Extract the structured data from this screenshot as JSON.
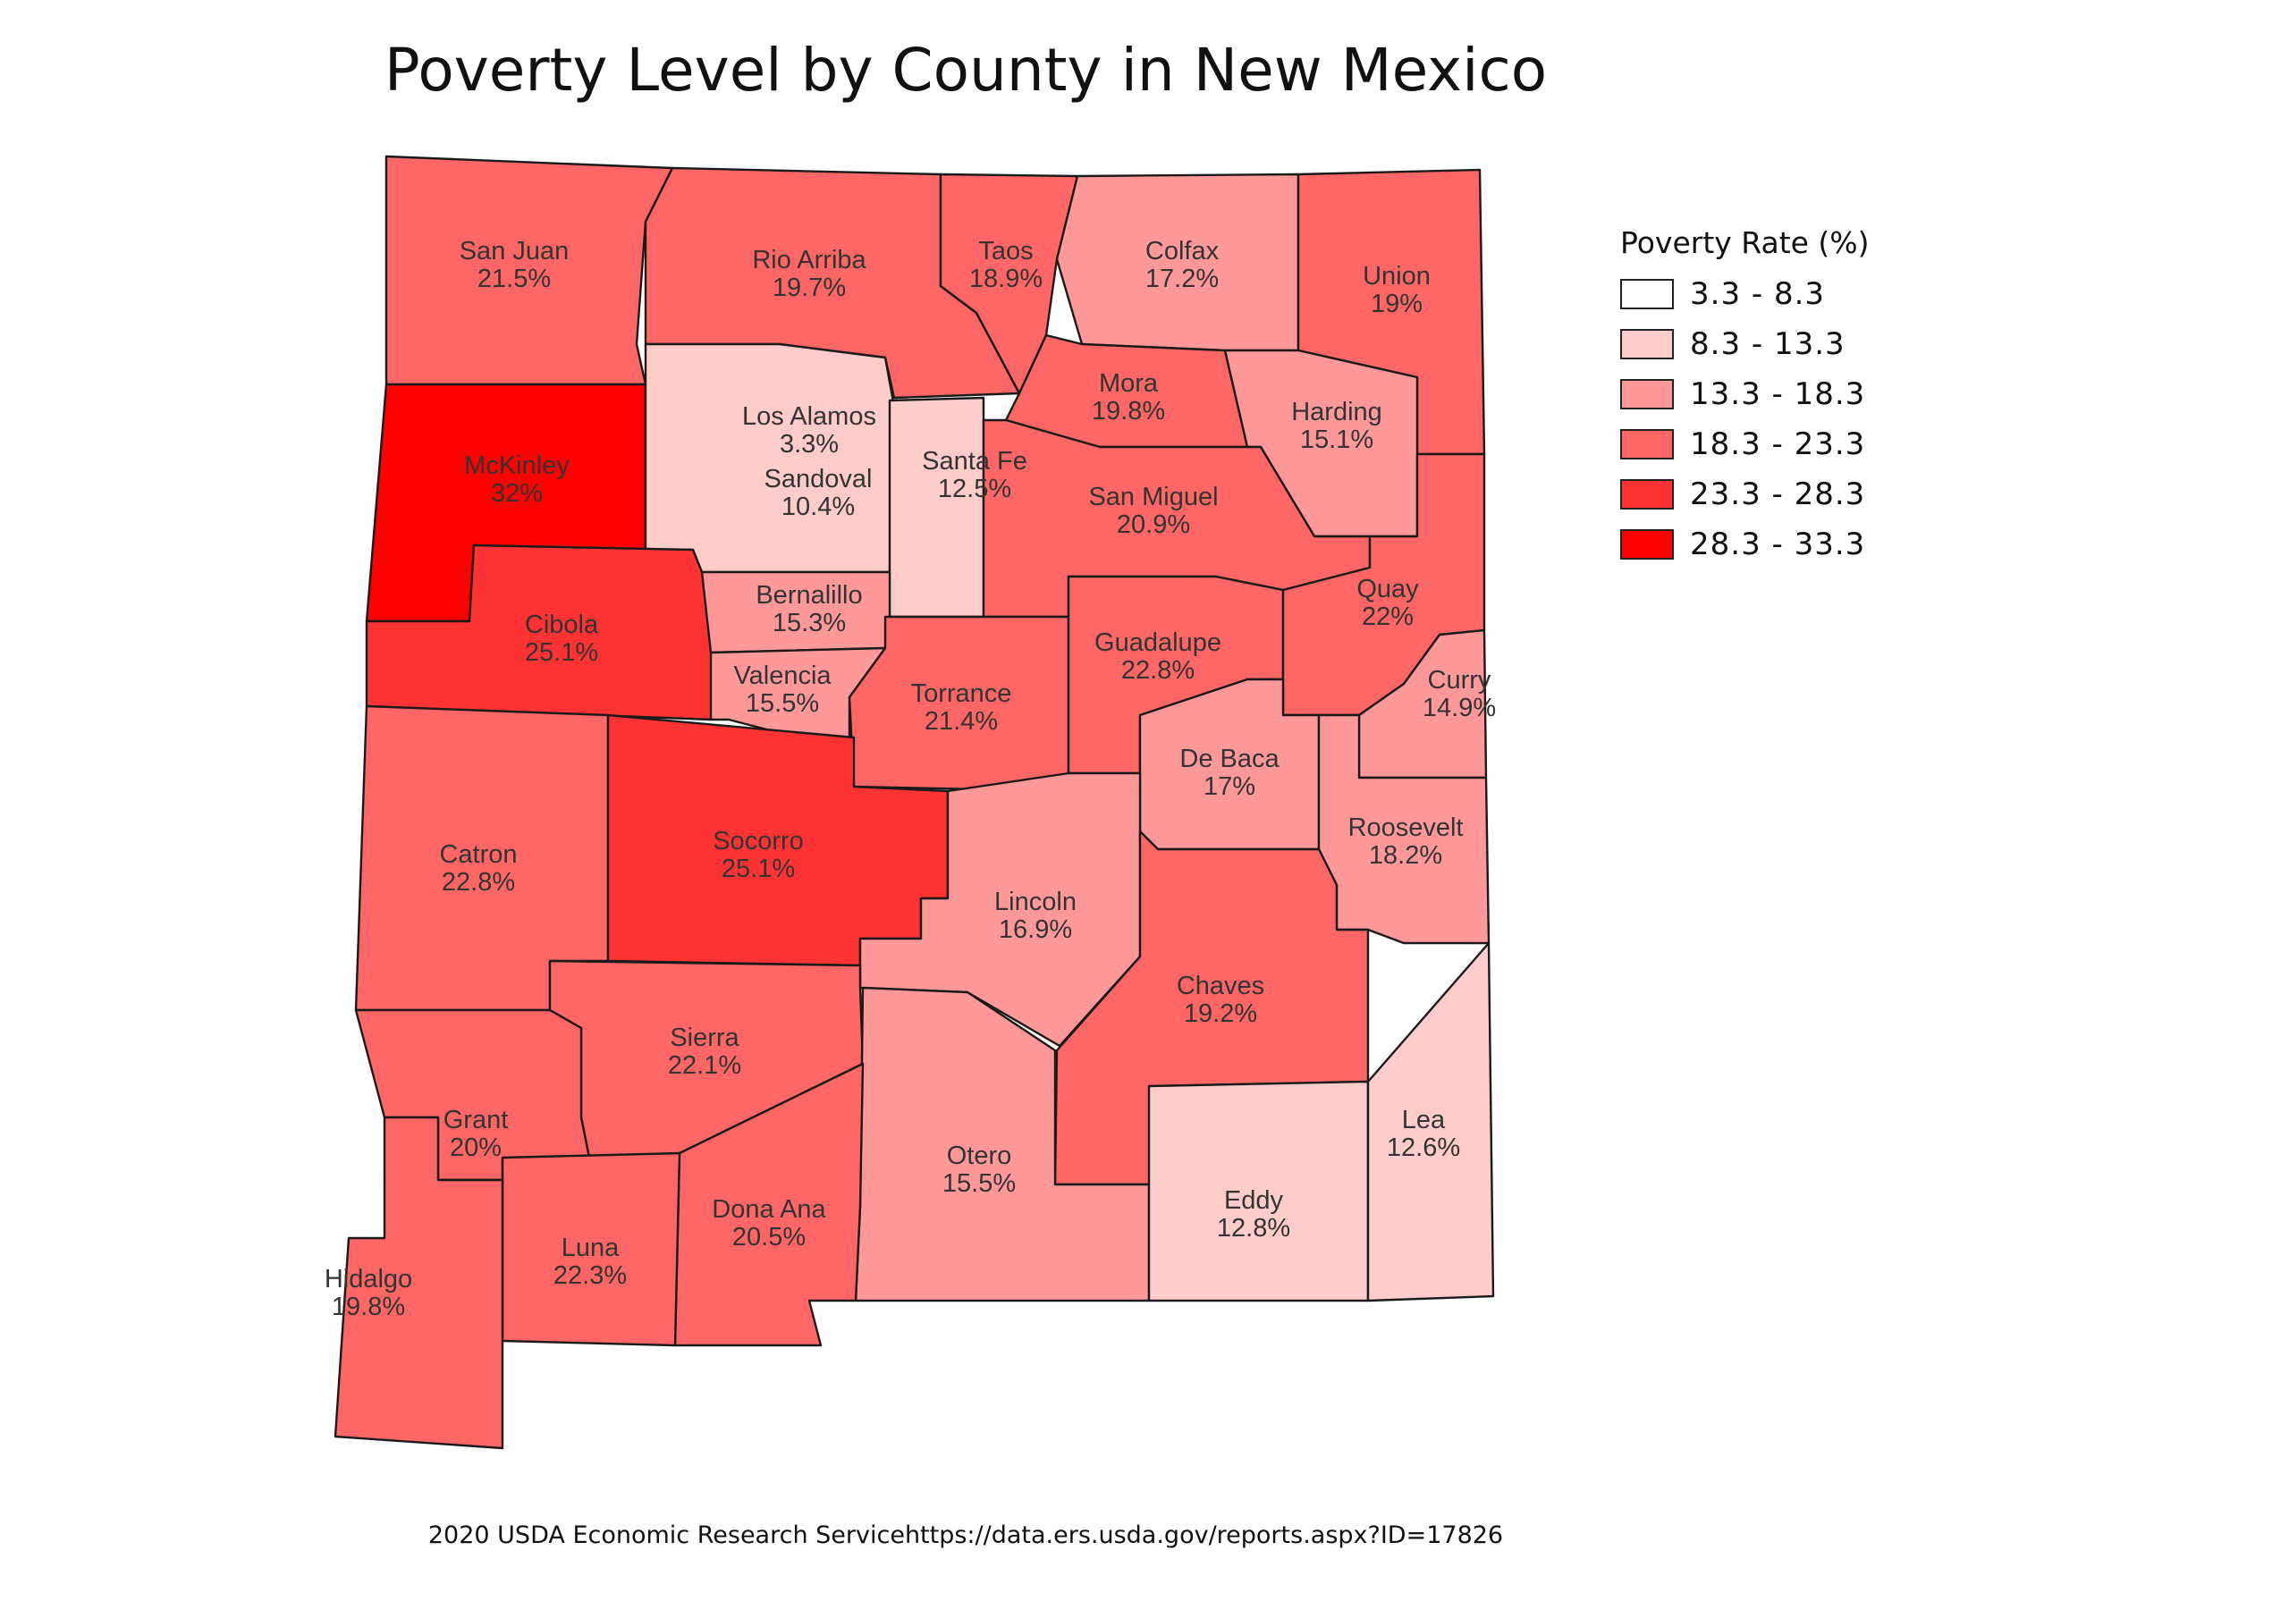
{
  "title": "Poverty Level by County in New Mexico",
  "source": "2020 USDA Economic Research Servicehttps://data.ers.usda.gov/reports.aspx?ID=17826",
  "legend": {
    "title": "Poverty Rate (%)",
    "items": [
      {
        "label": "3.3 - 8.3",
        "color": "#ffffff"
      },
      {
        "label": "8.3 - 13.3",
        "color": "#ffcccc"
      },
      {
        "label": "13.3 - 18.3",
        "color": "#ff9999"
      },
      {
        "label": "18.3 - 23.3",
        "color": "#ff6666"
      },
      {
        "label": "23.3 - 28.3",
        "color": "#ff3333"
      },
      {
        "label": "28.3 - 33.3",
        "color": "#ff0000"
      }
    ]
  },
  "counties": [
    {
      "name": "San Juan",
      "value": "21.5%"
    },
    {
      "name": "Rio Arriba",
      "value": "19.7%"
    },
    {
      "name": "Taos",
      "value": "18.9%"
    },
    {
      "name": "Colfax",
      "value": "17.2%"
    },
    {
      "name": "Union",
      "value": "19%"
    },
    {
      "name": "McKinley",
      "value": "32%"
    },
    {
      "name": "Los Alamos",
      "value": "3.3%"
    },
    {
      "name": "Sandoval",
      "value": "10.4%"
    },
    {
      "name": "Santa Fe",
      "value": "12.5%"
    },
    {
      "name": "Mora",
      "value": "19.8%"
    },
    {
      "name": "Harding",
      "value": "15.1%"
    },
    {
      "name": "San Miguel",
      "value": "20.9%"
    },
    {
      "name": "Cibola",
      "value": "25.1%"
    },
    {
      "name": "Bernalillo",
      "value": "15.3%"
    },
    {
      "name": "Valencia",
      "value": "15.5%"
    },
    {
      "name": "Torrance",
      "value": "21.4%"
    },
    {
      "name": "Guadalupe",
      "value": "22.8%"
    },
    {
      "name": "Quay",
      "value": "22%"
    },
    {
      "name": "Curry",
      "value": "14.9%"
    },
    {
      "name": "De Baca",
      "value": "17%"
    },
    {
      "name": "Roosevelt",
      "value": "18.2%"
    },
    {
      "name": "Catron",
      "value": "22.8%"
    },
    {
      "name": "Socorro",
      "value": "25.1%"
    },
    {
      "name": "Lincoln",
      "value": "16.9%"
    },
    {
      "name": "Chaves",
      "value": "19.2%"
    },
    {
      "name": "Sierra",
      "value": "22.1%"
    },
    {
      "name": "Grant",
      "value": "20%"
    },
    {
      "name": "Otero",
      "value": "15.5%"
    },
    {
      "name": "Dona Ana",
      "value": "20.5%"
    },
    {
      "name": "Luna",
      "value": "22.3%"
    },
    {
      "name": "Eddy",
      "value": "12.8%"
    },
    {
      "name": "Lea",
      "value": "12.6%"
    },
    {
      "name": "Hidalgo",
      "value": "19.8%"
    }
  ]
}
